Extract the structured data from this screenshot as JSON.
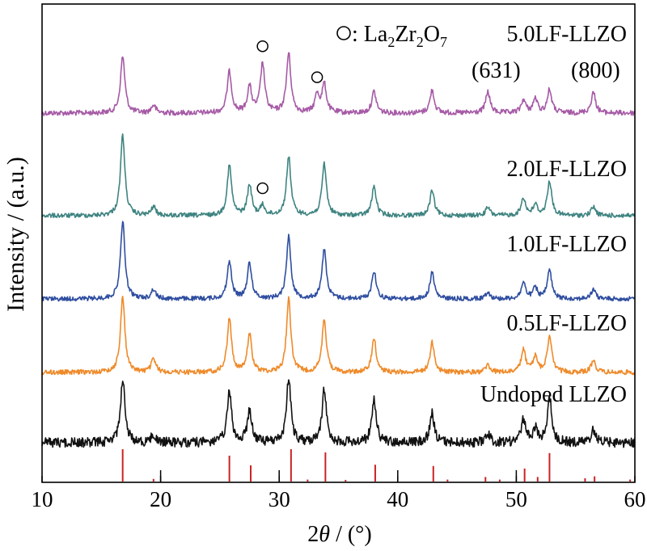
{
  "chart_data": {
    "type": "line",
    "xlabel_prefix": "2",
    "xlabel_theta": "θ",
    "xlabel_suffix": " / (°)",
    "ylabel": "Intensity / (a.u.)",
    "xlim": [
      10,
      60
    ],
    "x_ticks": [
      10,
      20,
      30,
      40,
      50,
      60
    ],
    "grid": false,
    "legend_marker_label": {
      "marker": "circle",
      "prefix": ": La",
      "sub1": "2",
      "mid": "Zr",
      "sub2": "2",
      "mid2": "O",
      "sub3": "7"
    },
    "plane_labels": [
      "(631)",
      "(800)"
    ],
    "series": [
      {
        "name": "5.0LF-LLZO",
        "color": "#a65aa6",
        "peaks": [
          {
            "x": 16.8,
            "y": 0.88
          },
          {
            "x": 19.4,
            "y": 0.12
          },
          {
            "x": 25.8,
            "y": 0.64
          },
          {
            "x": 27.5,
            "y": 0.4
          },
          {
            "x": 28.6,
            "y": 0.76
          },
          {
            "x": 30.8,
            "y": 0.92
          },
          {
            "x": 33.2,
            "y": 0.28
          },
          {
            "x": 33.8,
            "y": 0.44
          },
          {
            "x": 38.0,
            "y": 0.33
          },
          {
            "x": 42.9,
            "y": 0.35
          },
          {
            "x": 47.6,
            "y": 0.33
          },
          {
            "x": 50.6,
            "y": 0.2
          },
          {
            "x": 51.6,
            "y": 0.22
          },
          {
            "x": 52.8,
            "y": 0.36
          },
          {
            "x": 56.5,
            "y": 0.32
          }
        ],
        "impurity_markers_x": [
          28.6,
          33.2
        ]
      },
      {
        "name": "2.0LF-LLZO",
        "color": "#3f8481",
        "peaks": [
          {
            "x": 16.8,
            "y": 1.0
          },
          {
            "x": 19.4,
            "y": 0.11
          },
          {
            "x": 25.8,
            "y": 0.62
          },
          {
            "x": 27.5,
            "y": 0.38
          },
          {
            "x": 28.6,
            "y": 0.12
          },
          {
            "x": 30.8,
            "y": 0.73
          },
          {
            "x": 33.8,
            "y": 0.64
          },
          {
            "x": 38.0,
            "y": 0.36
          },
          {
            "x": 42.9,
            "y": 0.31
          },
          {
            "x": 47.6,
            "y": 0.1
          },
          {
            "x": 50.6,
            "y": 0.22
          },
          {
            "x": 51.6,
            "y": 0.13
          },
          {
            "x": 52.8,
            "y": 0.43
          },
          {
            "x": 56.5,
            "y": 0.11
          }
        ],
        "impurity_markers_x": [
          28.6
        ]
      },
      {
        "name": "1.0LF-LLZO",
        "color": "#2f4ea0",
        "peaks": [
          {
            "x": 16.8,
            "y": 1.0
          },
          {
            "x": 19.4,
            "y": 0.12
          },
          {
            "x": 25.8,
            "y": 0.48
          },
          {
            "x": 27.5,
            "y": 0.46
          },
          {
            "x": 30.8,
            "y": 0.8
          },
          {
            "x": 33.8,
            "y": 0.64
          },
          {
            "x": 38.0,
            "y": 0.36
          },
          {
            "x": 42.9,
            "y": 0.34
          },
          {
            "x": 47.6,
            "y": 0.09
          },
          {
            "x": 50.6,
            "y": 0.21
          },
          {
            "x": 51.6,
            "y": 0.14
          },
          {
            "x": 52.8,
            "y": 0.37
          },
          {
            "x": 56.5,
            "y": 0.12
          }
        ],
        "impurity_markers_x": []
      },
      {
        "name": "0.5LF-LLZO",
        "color": "#ef8a2a",
        "peaks": [
          {
            "x": 16.8,
            "y": 1.0
          },
          {
            "x": 19.4,
            "y": 0.18
          },
          {
            "x": 25.8,
            "y": 0.7
          },
          {
            "x": 27.5,
            "y": 0.5
          },
          {
            "x": 30.8,
            "y": 0.96
          },
          {
            "x": 33.8,
            "y": 0.7
          },
          {
            "x": 38.0,
            "y": 0.45
          },
          {
            "x": 42.9,
            "y": 0.4
          },
          {
            "x": 47.6,
            "y": 0.1
          },
          {
            "x": 50.6,
            "y": 0.3
          },
          {
            "x": 51.6,
            "y": 0.2
          },
          {
            "x": 52.8,
            "y": 0.48
          },
          {
            "x": 56.5,
            "y": 0.16
          }
        ],
        "impurity_markers_x": []
      },
      {
        "name": "Undoped LLZO",
        "color": "#111111",
        "peaks": [
          {
            "x": 16.8,
            "y": 1.0
          },
          {
            "x": 19.4,
            "y": 0.12
          },
          {
            "x": 25.8,
            "y": 0.78
          },
          {
            "x": 27.5,
            "y": 0.5
          },
          {
            "x": 30.8,
            "y": 1.0
          },
          {
            "x": 33.8,
            "y": 0.82
          },
          {
            "x": 38.0,
            "y": 0.7
          },
          {
            "x": 42.9,
            "y": 0.45
          },
          {
            "x": 47.6,
            "y": 0.14
          },
          {
            "x": 50.6,
            "y": 0.36
          },
          {
            "x": 51.6,
            "y": 0.22
          },
          {
            "x": 52.8,
            "y": 0.72
          },
          {
            "x": 56.5,
            "y": 0.2
          }
        ],
        "impurity_markers_x": []
      }
    ],
    "reference_pattern": {
      "color": "#cc2222",
      "lines": [
        {
          "x": 16.8,
          "y": 1.0
        },
        {
          "x": 19.4,
          "y": 0.08
        },
        {
          "x": 25.8,
          "y": 0.8
        },
        {
          "x": 27.6,
          "y": 0.5
        },
        {
          "x": 31.0,
          "y": 1.0
        },
        {
          "x": 32.4,
          "y": 0.06
        },
        {
          "x": 33.9,
          "y": 0.9
        },
        {
          "x": 35.6,
          "y": 0.05
        },
        {
          "x": 38.1,
          "y": 0.52
        },
        {
          "x": 43.0,
          "y": 0.48
        },
        {
          "x": 44.2,
          "y": 0.06
        },
        {
          "x": 47.4,
          "y": 0.14
        },
        {
          "x": 48.6,
          "y": 0.06
        },
        {
          "x": 50.7,
          "y": 0.4
        },
        {
          "x": 51.8,
          "y": 0.14
        },
        {
          "x": 52.8,
          "y": 0.88
        },
        {
          "x": 55.8,
          "y": 0.1
        },
        {
          "x": 56.6,
          "y": 0.16
        },
        {
          "x": 59.6,
          "y": 0.06
        }
      ]
    },
    "stick_marks": {
      "color": "#000000",
      "x": [
        20.0,
        30.0,
        40.0,
        50.0
      ]
    }
  }
}
